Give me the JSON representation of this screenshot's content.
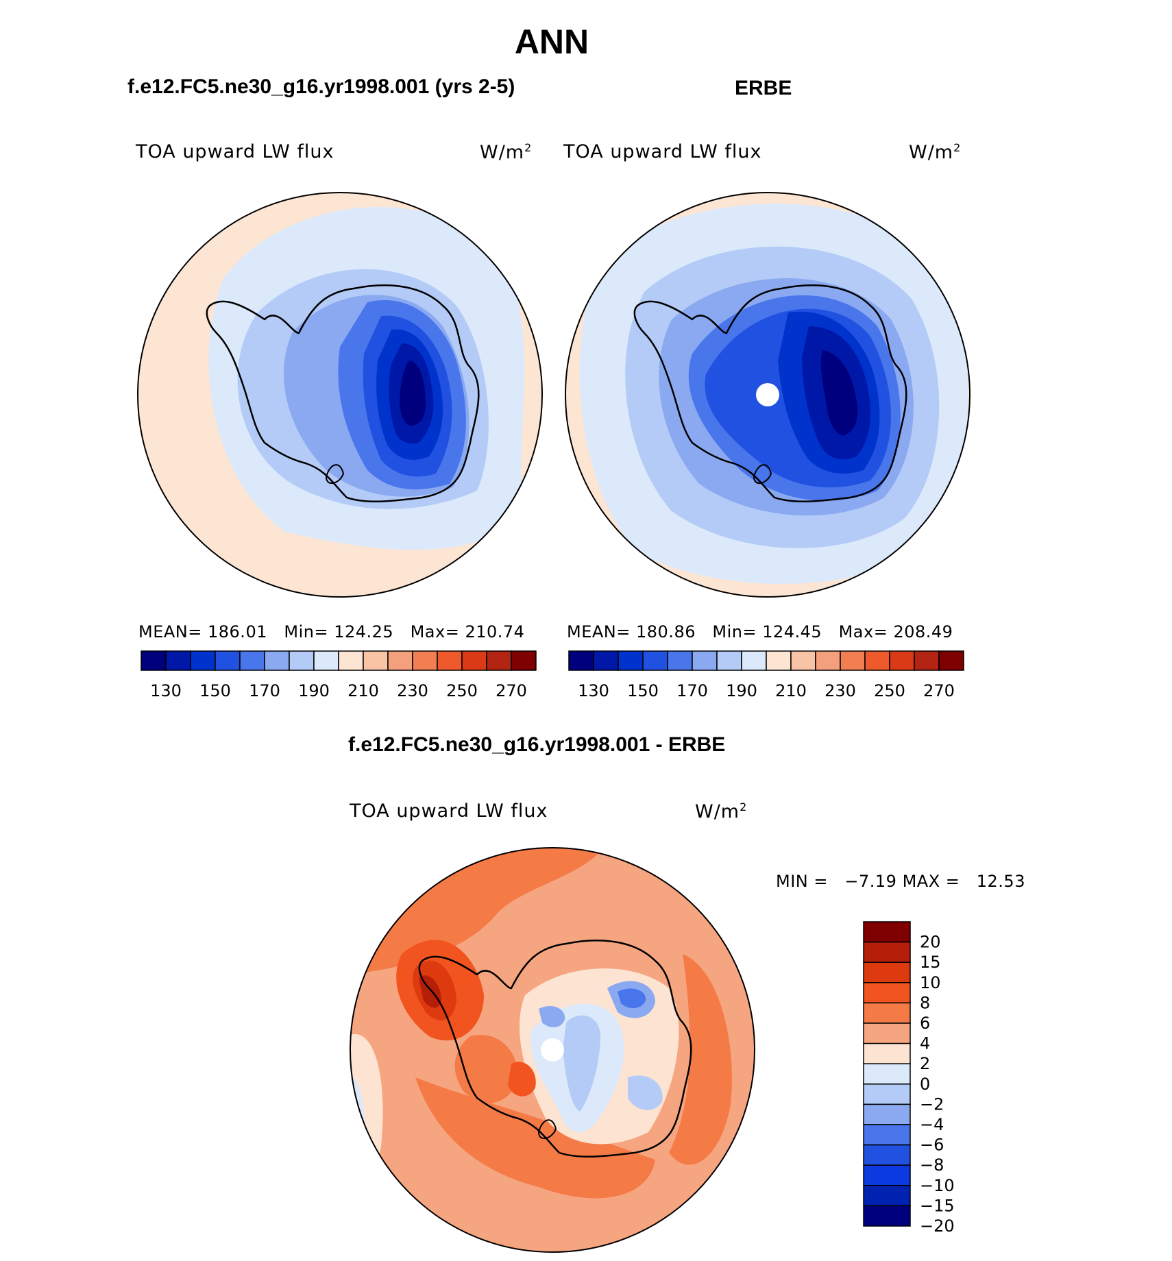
{
  "title": "ANN",
  "panels": [
    {
      "id": "model",
      "subtitle": "f.e12.FC5.ne30_g16.yr1998.001 (yrs 2-5)",
      "var_label": "TOA upward LW flux",
      "units": "W/m",
      "units_exp": "2",
      "stats": {
        "mean_label": "MEAN=",
        "mean": "186.01",
        "min_label": "Min=",
        "min": "124.25",
        "max_label": "Max=",
        "max": "210.74"
      }
    },
    {
      "id": "obs",
      "subtitle": "ERBE",
      "var_label": "TOA upward LW flux",
      "units": "W/m",
      "units_exp": "2",
      "stats": {
        "mean_label": "MEAN=",
        "mean": "180.86",
        "min_label": "Min=",
        "min": "124.45",
        "max_label": "Max=",
        "max": "208.49"
      }
    }
  ],
  "abs_colorbar": {
    "colors": [
      "#00007f",
      "#0018a8",
      "#0033cc",
      "#2151e0",
      "#4a76ec",
      "#8aa9f0",
      "#b3cbf6",
      "#dbe9fb",
      "#fde5d4",
      "#f9c4a6",
      "#f4a07c",
      "#f27f52",
      "#ef5a2d",
      "#db3a16",
      "#b32412",
      "#7f0000"
    ],
    "tick_labels": [
      "130",
      "150",
      "170",
      "190",
      "210",
      "230",
      "250",
      "270"
    ]
  },
  "diff": {
    "subtitle": "f.e12.FC5.ne30_g16.yr1998.001 - ERBE",
    "var_label": "TOA upward LW flux",
    "units": "W/m",
    "units_exp": "2",
    "min_label": "MIN =",
    "min": "−7.19",
    "max_label": "MAX =",
    "max": "12.53",
    "colorbar": {
      "colors": [
        "#7f0000",
        "#b51e08",
        "#dd3a0f",
        "#f25420",
        "#f47a46",
        "#f6a581",
        "#fde3d1",
        "#dbe9fb",
        "#b3cbf6",
        "#8aa9f0",
        "#4a76ec",
        "#2151e0",
        "#0a3ae0",
        "#0022b0",
        "#00007f"
      ],
      "labels": [
        "20",
        "15",
        "10",
        "8",
        "6",
        "4",
        "2",
        "0",
        "−2",
        "−4",
        "−6",
        "−8",
        "−10",
        "−15",
        "−20"
      ]
    }
  }
}
